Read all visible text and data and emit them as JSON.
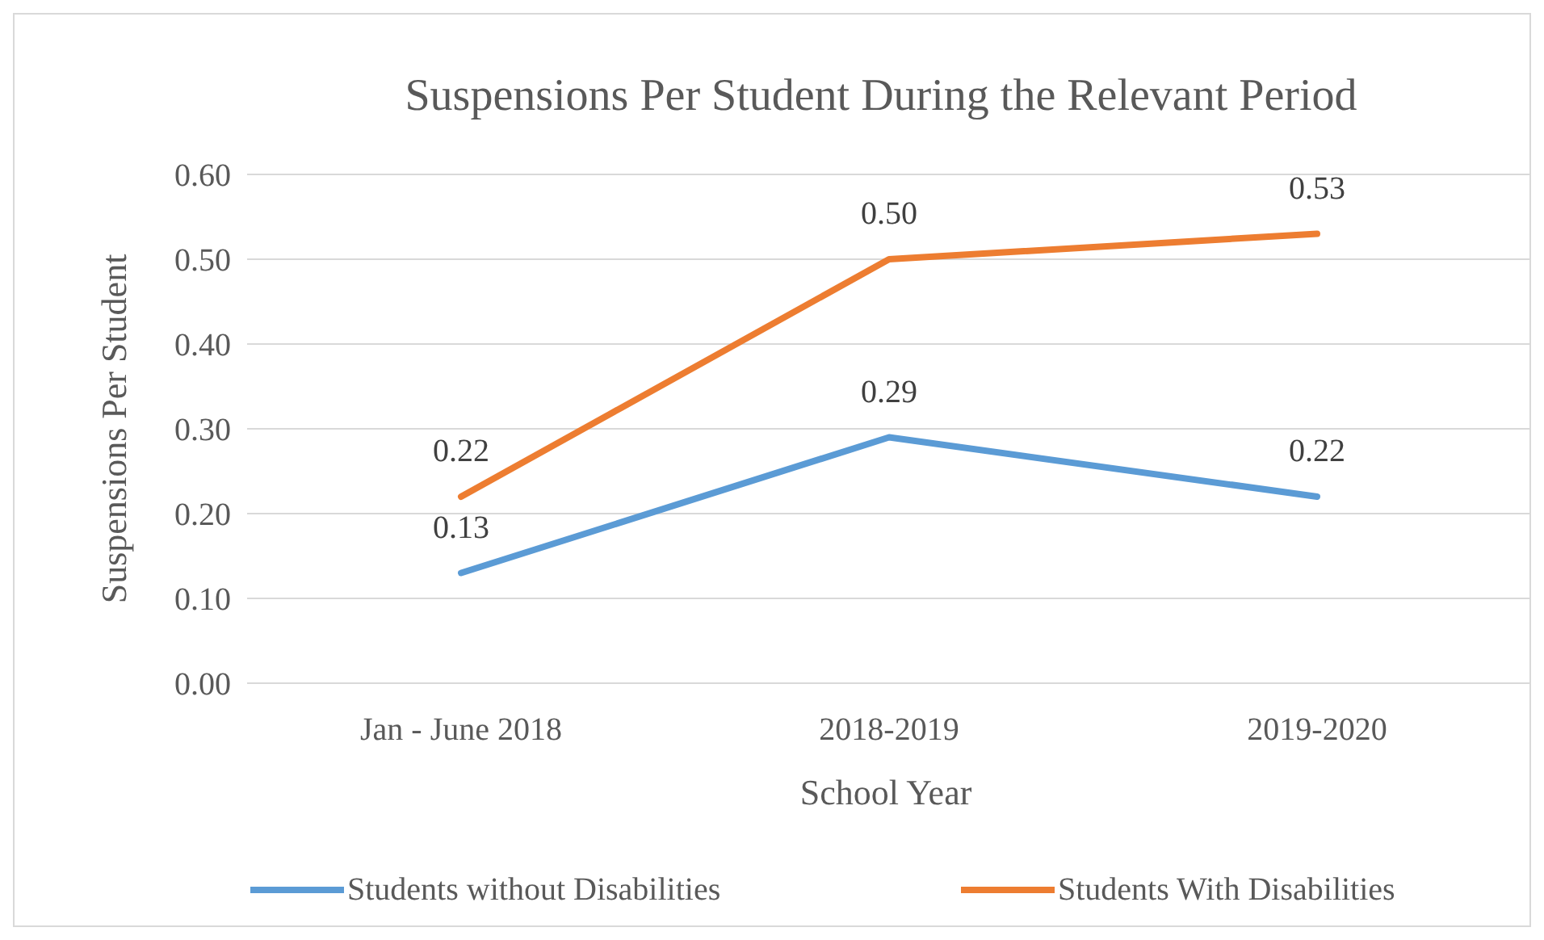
{
  "chart_data": {
    "type": "line",
    "title": "Suspensions Per Student During the Relevant Period",
    "xlabel": "School Year",
    "ylabel": "Suspensions Per Student",
    "categories": [
      "Jan - June 2018",
      "2018-2019",
      "2019-2020"
    ],
    "series": [
      {
        "name": "Students without Disabilities",
        "color": "#5b9bd5",
        "values": [
          0.13,
          0.29,
          0.22
        ],
        "value_labels": [
          "0.13",
          "0.29",
          "0.22"
        ]
      },
      {
        "name": "Students With Disabilities",
        "color": "#ed7d31",
        "values": [
          0.22,
          0.5,
          0.53
        ],
        "value_labels": [
          "0.22",
          "0.50",
          "0.53"
        ]
      }
    ],
    "ylim": [
      0,
      0.6
    ],
    "yticks": [
      {
        "value": 0,
        "label": "0.00"
      },
      {
        "value": 0.1,
        "label": "0.10"
      },
      {
        "value": 0.2,
        "label": "0.20"
      },
      {
        "value": 0.3,
        "label": "0.30"
      },
      {
        "value": 0.4,
        "label": "0.40"
      },
      {
        "value": 0.5,
        "label": "0.50"
      },
      {
        "value": 0.6,
        "label": "0.60"
      }
    ],
    "grid": "y",
    "legend": "bottom",
    "marker": "none",
    "line_style": "solid"
  }
}
